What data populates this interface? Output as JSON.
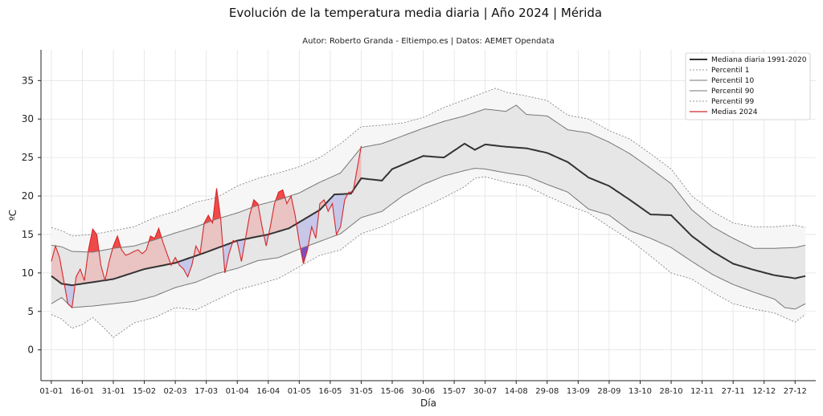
{
  "chart_data": {
    "type": "line",
    "title": "Evolución de la temperatura media diaria | Año 2024 | Mérida",
    "subtitle": "Autor: Roberto Granda - Eltiempo.es | Datos: AEMET Opendata",
    "xlabel": "Día",
    "ylabel": "ºC",
    "xlim": [
      -5,
      370
    ],
    "ylim": [
      -4,
      39
    ],
    "yticks": [
      0,
      5,
      10,
      15,
      20,
      25,
      30,
      35
    ],
    "x_tick_labels": [
      "01-01",
      "16-01",
      "31-01",
      "15-02",
      "02-03",
      "17-03",
      "01-04",
      "16-04",
      "01-05",
      "16-05",
      "31-05",
      "15-06",
      "30-06",
      "15-07",
      "30-07",
      "14-08",
      "29-08",
      "13-09",
      "28-09",
      "13-10",
      "28-10",
      "12-11",
      "27-11",
      "12-12",
      "27-12"
    ],
    "x_tick_step_days": 15,
    "grid": true,
    "legend_position": "top-right",
    "legend": [
      "Mediana diaria 1991-2020",
      "Percentil 1",
      "Percentil 10",
      "Percentil 90",
      "Percentil 99",
      "Medias 2024"
    ],
    "colors": {
      "median": "#333333",
      "p10_p90_line": "#777777",
      "p1_p99_line": "#777777",
      "band_inner": "#e6e6e6",
      "band_outer": "#f6f6f6",
      "series_2024": "#d62728",
      "above_fill": "#f08080",
      "below_fill": "#9999ee",
      "extreme_high": "#ee1111",
      "extreme_low": "#6622aa"
    },
    "series": [
      {
        "name": "Mediana diaria 1991-2020",
        "x": [
          0,
          5,
          10,
          15,
          20,
          30,
          45,
          60,
          75,
          90,
          105,
          115,
          120,
          130,
          137,
          145,
          150,
          160,
          165,
          180,
          190,
          200,
          205,
          210,
          220,
          230,
          240,
          250,
          260,
          270,
          280,
          290,
          300,
          310,
          320,
          330,
          340,
          350,
          360,
          365
        ],
        "values": [
          9.6,
          8.6,
          8.4,
          8.6,
          8.8,
          9.2,
          10.5,
          11.3,
          12.7,
          14.2,
          15.0,
          15.8,
          16.6,
          18.2,
          20.2,
          20.3,
          22.3,
          22.0,
          23.5,
          25.2,
          25.0,
          26.8,
          26.0,
          26.7,
          26.4,
          26.2,
          25.6,
          24.4,
          22.4,
          21.3,
          19.5,
          17.6,
          17.5,
          14.8,
          12.8,
          11.2,
          10.4,
          9.7,
          9.3,
          9.6
        ]
      },
      {
        "name": "Percentil 1",
        "x": [
          0,
          5,
          10,
          15,
          20,
          25,
          30,
          40,
          50,
          60,
          70,
          80,
          90,
          100,
          110,
          120,
          130,
          140,
          150,
          160,
          170,
          180,
          190,
          200,
          205,
          210,
          220,
          230,
          240,
          250,
          260,
          270,
          280,
          290,
          300,
          310,
          320,
          330,
          340,
          350,
          360,
          365
        ],
        "values": [
          4.6,
          4.0,
          2.8,
          3.3,
          4.2,
          3.0,
          1.6,
          3.5,
          4.2,
          5.5,
          5.2,
          6.5,
          7.8,
          8.5,
          9.3,
          10.8,
          12.3,
          13.0,
          15.1,
          16.0,
          17.3,
          18.5,
          19.8,
          21.2,
          22.3,
          22.5,
          21.8,
          21.3,
          20.0,
          18.8,
          17.8,
          16.0,
          14.3,
          12.2,
          10.0,
          9.2,
          7.5,
          6.0,
          5.3,
          4.8,
          3.6,
          4.6
        ]
      },
      {
        "name": "Percentil 10",
        "x": [
          0,
          5,
          10,
          20,
          30,
          40,
          50,
          60,
          70,
          80,
          90,
          100,
          110,
          120,
          130,
          140,
          150,
          160,
          170,
          180,
          190,
          200,
          205,
          210,
          220,
          230,
          240,
          250,
          260,
          270,
          280,
          290,
          300,
          310,
          320,
          330,
          340,
          350,
          355,
          360,
          365
        ],
        "values": [
          6.0,
          6.8,
          5.5,
          5.7,
          6.0,
          6.3,
          7.0,
          8.1,
          8.8,
          9.9,
          10.6,
          11.6,
          12.0,
          13.1,
          14.1,
          15.1,
          17.2,
          18.0,
          20.0,
          21.5,
          22.6,
          23.3,
          23.6,
          23.5,
          23.0,
          22.6,
          21.5,
          20.5,
          18.3,
          17.5,
          15.5,
          14.5,
          13.3,
          11.5,
          9.8,
          8.5,
          7.5,
          6.6,
          5.5,
          5.3,
          6.0
        ]
      },
      {
        "name": "Percentil 90",
        "x": [
          0,
          5,
          10,
          20,
          30,
          40,
          50,
          60,
          70,
          80,
          90,
          100,
          110,
          120,
          130,
          140,
          150,
          160,
          170,
          180,
          190,
          200,
          210,
          220,
          225,
          230,
          240,
          250,
          260,
          270,
          280,
          290,
          300,
          310,
          320,
          330,
          340,
          350,
          360,
          365
        ],
        "values": [
          13.6,
          13.4,
          12.8,
          12.7,
          13.2,
          13.5,
          14.3,
          15.2,
          16.0,
          17.0,
          17.8,
          18.8,
          19.5,
          20.4,
          21.8,
          23.0,
          26.3,
          26.8,
          27.8,
          28.8,
          29.7,
          30.4,
          31.3,
          31.0,
          31.8,
          30.6,
          30.4,
          28.6,
          28.2,
          27.0,
          25.5,
          23.6,
          21.6,
          18.2,
          16.0,
          14.5,
          13.2,
          13.2,
          13.3,
          13.6
        ]
      },
      {
        "name": "Percentil 99",
        "x": [
          0,
          5,
          10,
          20,
          30,
          40,
          50,
          60,
          70,
          80,
          90,
          100,
          110,
          120,
          130,
          140,
          150,
          160,
          170,
          180,
          190,
          200,
          210,
          215,
          220,
          230,
          240,
          250,
          260,
          270,
          280,
          290,
          300,
          310,
          320,
          330,
          340,
          350,
          360,
          365
        ],
        "values": [
          15.9,
          15.5,
          14.8,
          15.0,
          15.5,
          16.0,
          17.2,
          18.0,
          19.2,
          19.8,
          21.3,
          22.3,
          23.0,
          23.8,
          25.0,
          26.8,
          29.0,
          29.2,
          29.5,
          30.2,
          31.5,
          32.5,
          33.5,
          34.0,
          33.5,
          33.0,
          32.4,
          30.5,
          30.0,
          28.5,
          27.4,
          25.5,
          23.5,
          20.0,
          18.0,
          16.5,
          16.0,
          16.0,
          16.2,
          15.9
        ]
      },
      {
        "name": "Medias 2024",
        "x": [
          0,
          2,
          4,
          6,
          8,
          10,
          12,
          14,
          16,
          18,
          20,
          22,
          24,
          26,
          28,
          30,
          32,
          34,
          36,
          38,
          40,
          42,
          44,
          46,
          48,
          50,
          52,
          54,
          56,
          58,
          60,
          62,
          64,
          66,
          68,
          70,
          72,
          74,
          76,
          78,
          80,
          82,
          84,
          86,
          88,
          90,
          92,
          94,
          96,
          98,
          100,
          102,
          104,
          106,
          108,
          110,
          112,
          114,
          116,
          118,
          120,
          122,
          124,
          126,
          128,
          130,
          132,
          134,
          136,
          138,
          140,
          142,
          144,
          146,
          148,
          150
        ],
        "values": [
          11.5,
          13.5,
          12.0,
          9.0,
          6.0,
          5.5,
          9.5,
          10.5,
          9.0,
          13.0,
          15.7,
          15.0,
          11.0,
          9.0,
          11.5,
          13.5,
          14.8,
          13.0,
          12.3,
          12.5,
          12.8,
          13.0,
          12.5,
          13.0,
          14.8,
          14.5,
          15.8,
          14.0,
          12.5,
          11.0,
          12.0,
          11.0,
          10.5,
          9.5,
          11.0,
          13.5,
          12.5,
          16.5,
          17.5,
          16.5,
          21.0,
          17.0,
          10.0,
          12.5,
          14.2,
          14.0,
          11.5,
          14.5,
          17.5,
          19.5,
          19.0,
          16.0,
          13.5,
          16.0,
          19.0,
          20.5,
          20.8,
          19.0,
          20.0,
          17.5,
          14.0,
          11.2,
          13.0,
          16.0,
          14.5,
          19.0,
          19.5,
          18.0,
          19.0,
          15.0,
          16.0,
          19.5,
          20.5,
          20.5,
          23.5,
          26.5
        ]
      }
    ]
  }
}
